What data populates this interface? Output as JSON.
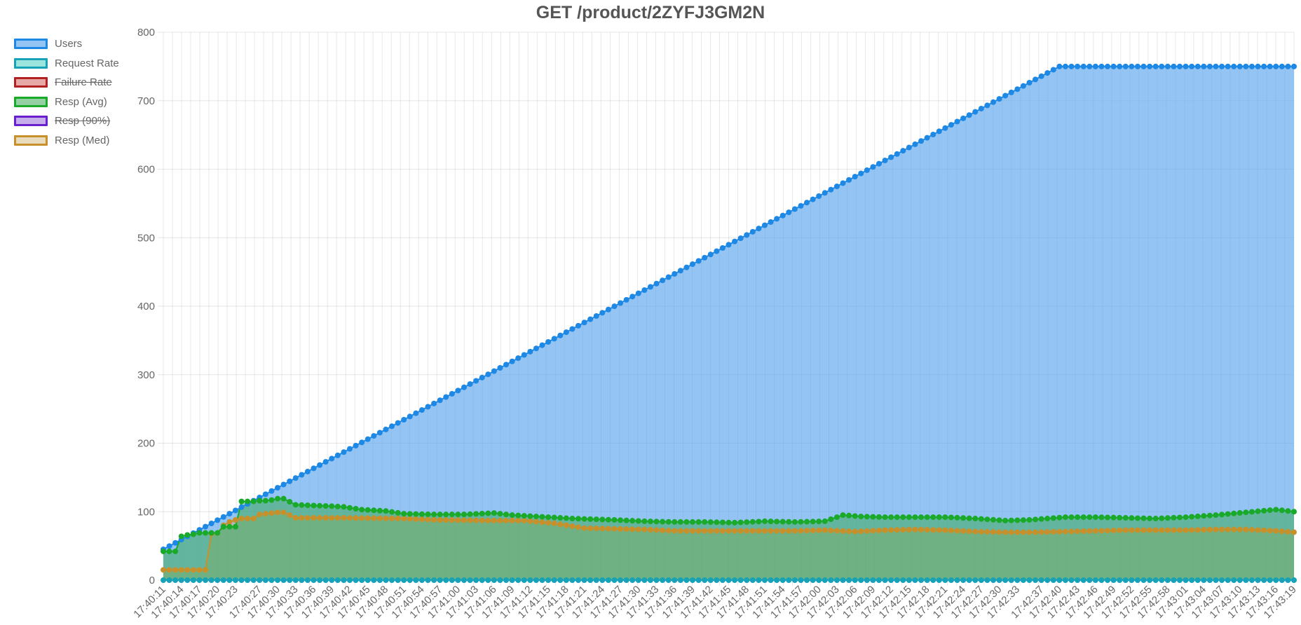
{
  "chart_data": {
    "type": "line",
    "title": "GET /product/2ZYFJ3GM2N",
    "ylim": [
      0,
      800
    ],
    "y_ticks": [
      0,
      100,
      200,
      300,
      400,
      500,
      600,
      700,
      800
    ],
    "grid": true,
    "legend_position": "left",
    "start_time": "17:40:11",
    "end_time": "17:43:19",
    "sample_interval_seconds": 1,
    "x_ticks": [
      "17:40:11",
      "17:40:14",
      "17:40:17",
      "17:40:20",
      "17:40:23",
      "17:40:27",
      "17:40:30",
      "17:40:33",
      "17:40:36",
      "17:40:39",
      "17:40:42",
      "17:40:45",
      "17:40:48",
      "17:40:51",
      "17:40:54",
      "17:40:57",
      "17:41:00",
      "17:41:03",
      "17:41:06",
      "17:41:09",
      "17:41:12",
      "17:41:15",
      "17:41:18",
      "17:41:21",
      "17:41:24",
      "17:41:27",
      "17:41:30",
      "17:41:33",
      "17:41:36",
      "17:41:39",
      "17:41:42",
      "17:41:45",
      "17:41:48",
      "17:41:51",
      "17:41:54",
      "17:41:57",
      "17:42:00",
      "17:42:03",
      "17:42:06",
      "17:42:09",
      "17:42:12",
      "17:42:15",
      "17:42:18",
      "17:42:21",
      "17:42:24",
      "17:42:27",
      "17:42:30",
      "17:42:33",
      "17:42:37",
      "17:42:40",
      "17:42:43",
      "17:42:46",
      "17:42:49",
      "17:42:52",
      "17:42:55",
      "17:42:58",
      "17:43:01",
      "17:43:04",
      "17:43:07",
      "17:43:10",
      "17:43:13",
      "17:43:16",
      "17:43:19"
    ],
    "series": [
      {
        "name": "Users",
        "color": "#1e88e5",
        "fill": "rgba(90,165,236,0.65)",
        "hidden": false,
        "segments": [
          [
            0,
            45
          ],
          [
            149,
            750
          ],
          [
            188,
            750
          ]
        ]
      },
      {
        "name": "Request Rate",
        "color": "#17a2b8",
        "fill": "rgba(77,205,195,0.55)",
        "hidden": false,
        "segments": [
          [
            0,
            0
          ],
          [
            188,
            0
          ]
        ]
      },
      {
        "name": "Failure Rate",
        "color": "#b22222",
        "fill": "rgba(215,110,110,0.6)",
        "hidden": true,
        "segments": [
          [
            0,
            0
          ],
          [
            188,
            0
          ]
        ]
      },
      {
        "name": "Resp (Avg)",
        "color": "#1aaa2a",
        "fill": "rgba(60,170,90,0.55)",
        "hidden": false,
        "segments": [
          [
            0,
            42
          ],
          [
            1,
            42
          ],
          [
            2,
            42
          ],
          [
            3,
            64
          ],
          [
            4,
            66
          ],
          [
            5,
            67
          ],
          [
            6,
            69
          ],
          [
            7,
            69
          ],
          [
            8,
            69
          ],
          [
            9,
            69
          ],
          [
            10,
            78
          ],
          [
            11,
            78
          ],
          [
            12,
            78
          ],
          [
            13,
            115
          ],
          [
            14,
            115
          ],
          [
            15,
            115
          ],
          [
            16,
            116
          ],
          [
            17,
            116
          ],
          [
            18,
            117
          ],
          [
            19,
            119
          ],
          [
            20,
            119
          ],
          [
            22,
            110
          ],
          [
            28,
            108
          ],
          [
            30,
            107
          ],
          [
            33,
            103
          ],
          [
            37,
            101
          ],
          [
            40,
            97
          ],
          [
            45,
            96
          ],
          [
            50,
            96
          ],
          [
            55,
            98
          ],
          [
            58,
            95
          ],
          [
            62,
            93
          ],
          [
            68,
            90
          ],
          [
            75,
            88
          ],
          [
            80,
            86
          ],
          [
            85,
            85
          ],
          [
            90,
            85
          ],
          [
            95,
            84
          ],
          [
            100,
            86
          ],
          [
            105,
            85
          ],
          [
            110,
            86
          ],
          [
            113,
            95
          ],
          [
            116,
            93
          ],
          [
            120,
            92
          ],
          [
            125,
            92
          ],
          [
            130,
            92
          ],
          [
            135,
            90
          ],
          [
            140,
            87
          ],
          [
            144,
            88
          ],
          [
            150,
            92
          ],
          [
            155,
            92
          ],
          [
            160,
            91
          ],
          [
            165,
            90
          ],
          [
            170,
            92
          ],
          [
            175,
            95
          ],
          [
            180,
            99
          ],
          [
            185,
            103
          ],
          [
            188,
            100
          ]
        ]
      },
      {
        "name": "Resp (90%)",
        "color": "#6a1fcc",
        "fill": "rgba(160,120,220,0.6)",
        "hidden": true,
        "segments": [
          [
            0,
            0
          ],
          [
            188,
            0
          ]
        ]
      },
      {
        "name": "Resp (Med)",
        "color": "#c8902a",
        "fill": "rgba(205,175,110,0.45)",
        "hidden": false,
        "segments": [
          [
            0,
            15
          ],
          [
            1,
            15
          ],
          [
            2,
            15
          ],
          [
            3,
            15
          ],
          [
            4,
            15
          ],
          [
            5,
            15
          ],
          [
            6,
            15
          ],
          [
            7,
            15
          ],
          [
            8,
            68
          ],
          [
            9,
            69
          ],
          [
            10,
            80
          ],
          [
            11,
            85
          ],
          [
            12,
            88
          ],
          [
            13,
            90
          ],
          [
            14,
            90
          ],
          [
            15,
            90
          ],
          [
            16,
            96
          ],
          [
            17,
            97
          ],
          [
            18,
            98
          ],
          [
            19,
            99
          ],
          [
            20,
            99
          ],
          [
            22,
            91
          ],
          [
            30,
            91
          ],
          [
            40,
            90
          ],
          [
            45,
            88
          ],
          [
            55,
            87
          ],
          [
            60,
            87
          ],
          [
            65,
            83
          ],
          [
            70,
            76
          ],
          [
            75,
            75
          ],
          [
            80,
            74
          ],
          [
            85,
            72
          ],
          [
            90,
            72
          ],
          [
            95,
            72
          ],
          [
            100,
            72
          ],
          [
            105,
            72
          ],
          [
            110,
            73
          ],
          [
            115,
            71
          ],
          [
            120,
            73
          ],
          [
            125,
            74
          ],
          [
            130,
            73
          ],
          [
            135,
            71
          ],
          [
            140,
            70
          ],
          [
            145,
            70
          ],
          [
            150,
            71
          ],
          [
            155,
            72
          ],
          [
            160,
            73
          ],
          [
            165,
            73
          ],
          [
            170,
            73
          ],
          [
            175,
            74
          ],
          [
            180,
            74
          ],
          [
            185,
            72
          ],
          [
            188,
            70
          ]
        ]
      }
    ]
  }
}
